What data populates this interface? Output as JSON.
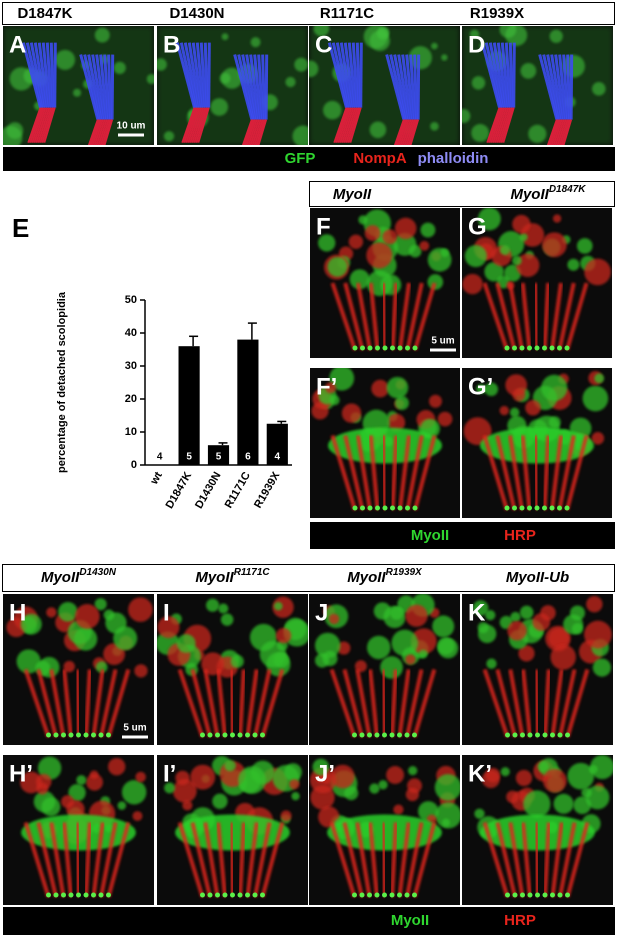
{
  "top_panel": {
    "headers": [
      "D1847K",
      "D1430N",
      "R1171C",
      "R1939X"
    ],
    "panels": [
      "A",
      "B",
      "C",
      "D"
    ],
    "scale_bar": "10 um",
    "legend": [
      "GFP",
      "NompA",
      "phalloidin"
    ]
  },
  "chart_data": {
    "type": "bar",
    "title": "E",
    "y_label": "percentage of detached scolopidia",
    "categories": [
      "wt",
      "D1847K",
      "D1430N",
      "R1171C",
      "R1939X"
    ],
    "values": [
      0,
      36,
      6,
      38,
      12.5
    ],
    "errors": [
      0,
      3,
      0.7,
      5,
      0.7
    ],
    "n_labels": [
      4,
      5,
      5,
      6,
      4
    ],
    "color": "#000000",
    "ylim": [
      0,
      50
    ],
    "yticks": [
      0,
      10,
      20,
      30,
      40,
      50
    ]
  },
  "middle_panel": {
    "headers": [
      {
        "base": "MyoII"
      },
      {
        "base": "MyoII",
        "sup": "D1847K"
      }
    ],
    "panels": [
      "F",
      "G",
      "F’",
      "G’"
    ],
    "scale_bar": "5 um",
    "legend": [
      "MyoII",
      "HRP"
    ]
  },
  "bottom_panel": {
    "headers": [
      {
        "base": "MyoII",
        "sup": "D1430N"
      },
      {
        "base": "MyoII",
        "sup": "R1171C"
      },
      {
        "base": "MyoII",
        "sup": "R1939X"
      },
      {
        "base": "MyoII-Ub"
      }
    ],
    "panels": [
      "H",
      "I",
      "J",
      "K",
      "H’",
      "I’",
      "J’",
      "K’"
    ],
    "scale_bar": "5 um",
    "legend": [
      "MyoII",
      "HRP"
    ]
  }
}
